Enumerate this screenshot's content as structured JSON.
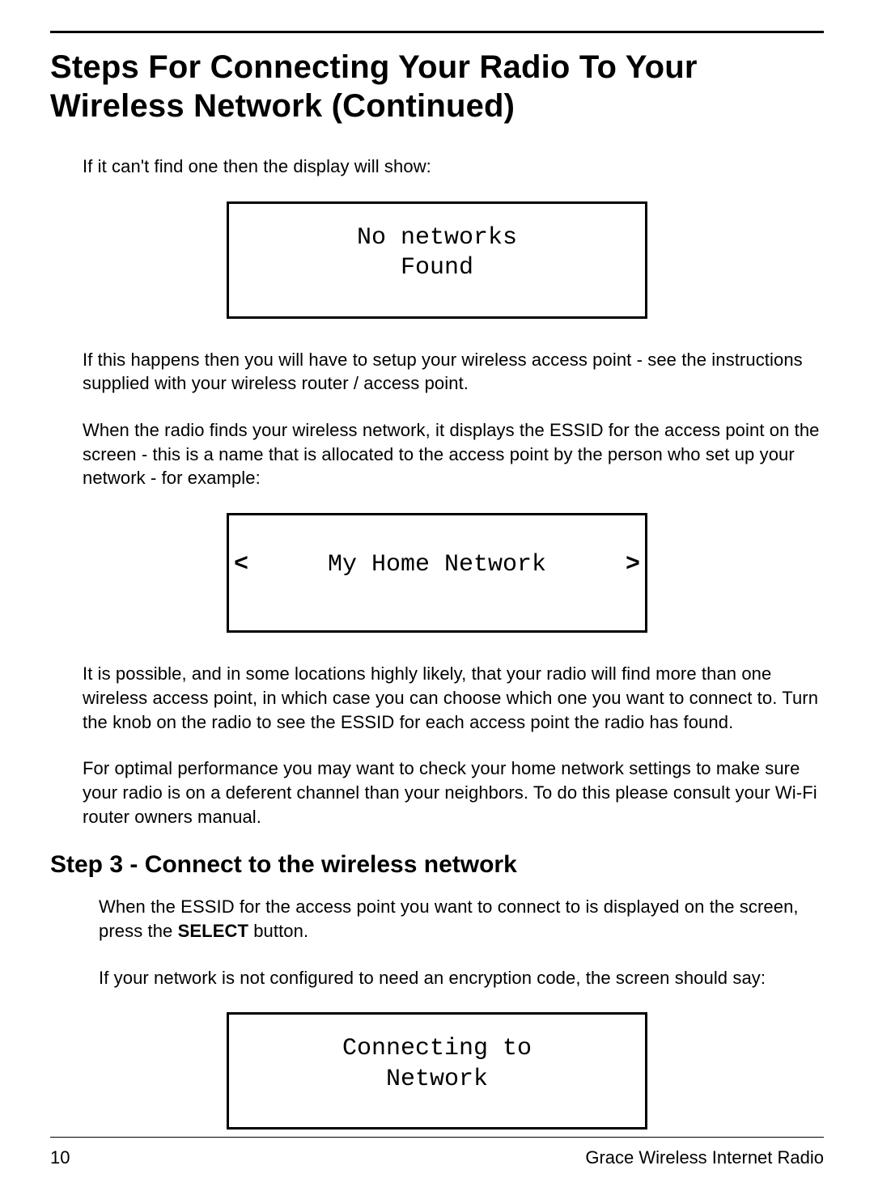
{
  "title": "Steps For Connecting Your Radio To Your Wireless Network (Continued)",
  "para1": "If it can't find one then the display will show:",
  "display1": {
    "line1": "No networks",
    "line2": "Found"
  },
  "para2": "If this happens then you will have to setup your wireless access point - see the instructions supplied with your wireless router / access point.",
  "para3": "When the radio finds your wireless network, it displays the ESSID for the access point on the screen - this is a name that is allocated to the access point by the person who set up your network - for example:",
  "display2": {
    "left_arrow": "<",
    "text": "My Home Network",
    "right_arrow": ">"
  },
  "para4": "It is possible, and in some locations highly likely, that your radio will find more than one wireless access point, in which case you can choose which one you want to connect to. Turn the knob on the radio to see the ESSID for each access point the radio has found.",
  "para5": "For optimal performance you may want to check your home network settings to make sure your radio is on a deferent channel than your neighbors. To do this please consult your Wi-Fi router owners manual.",
  "step3_heading": "Step 3 - Connect to the wireless network",
  "step3_para1_pre": "When the ESSID for the access point you want to connect to is displayed on the screen, press the ",
  "step3_para1_bold": "SELECT",
  "step3_para1_post": " button.",
  "step3_para2": "If your network is not configured to need an encryption code, the screen should say:",
  "display3": {
    "line1": "Connecting to",
    "line2": "Network"
  },
  "footer": {
    "page": "10",
    "label": "Grace Wireless Internet Radio"
  }
}
